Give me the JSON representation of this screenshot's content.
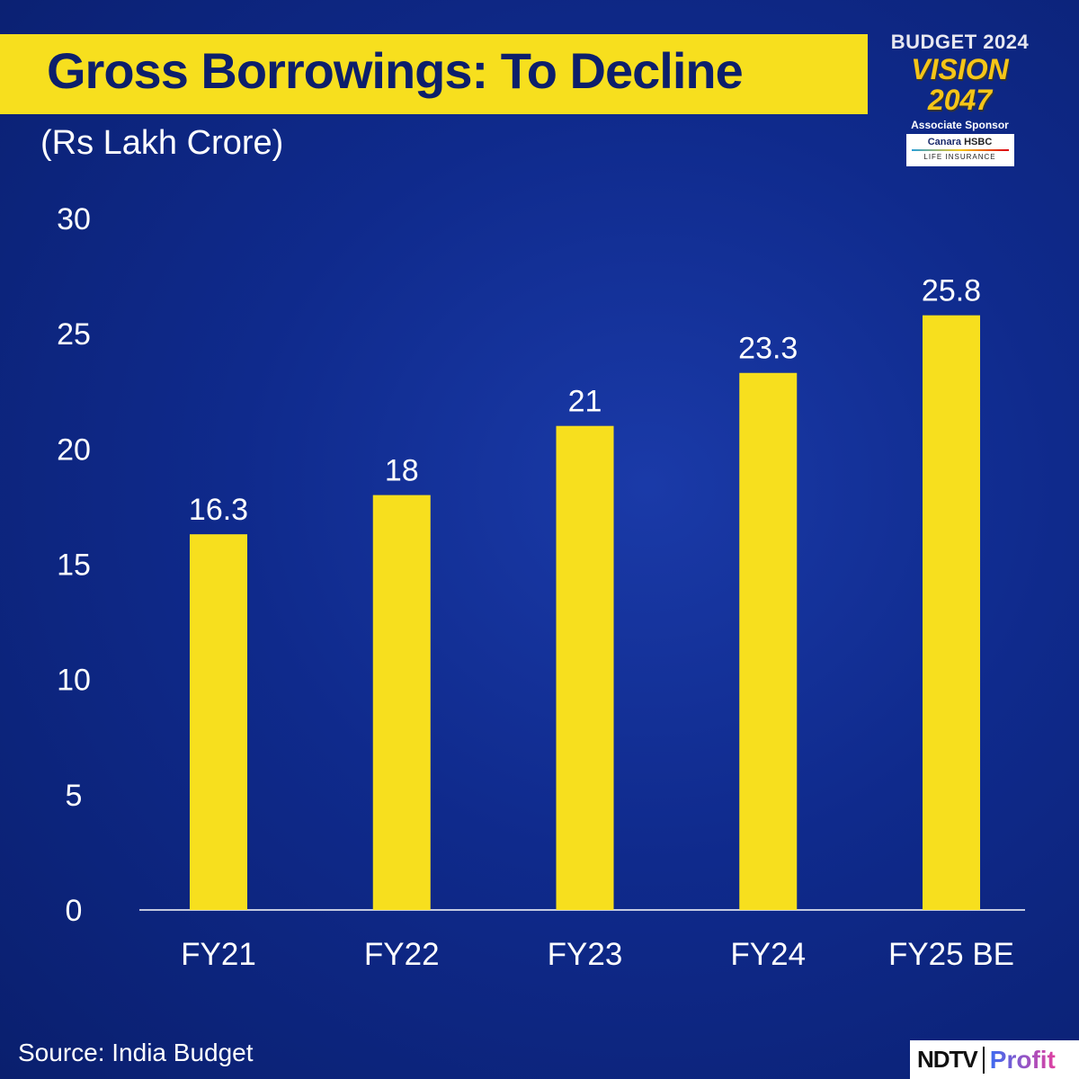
{
  "header": {
    "title": "Gross Borrowings: To Decline",
    "subtitle": "(Rs Lakh Crore)"
  },
  "sponsor": {
    "line1": "BUDGET 2024",
    "line2": "VISION 2047",
    "label": "Associate Sponsor",
    "brand1": "Canara",
    "brand2": "HSBC",
    "brand3": "LIFE INSURANCE"
  },
  "footer": {
    "source": "Source: India Budget",
    "logo_left": "NDTV",
    "logo_right": "Profit"
  },
  "colors": {
    "bar": "#f7df1e",
    "background": "#0f2a8c",
    "title_bar": "#f7df1e",
    "title_text": "#0d1f6b"
  },
  "chart_data": {
    "type": "bar",
    "title": "Gross Borrowings: To Decline",
    "ylabel": "(Rs Lakh Crore)",
    "xlabel": "",
    "categories": [
      "FY21",
      "FY22",
      "FY23",
      "FY24",
      "FY25 BE"
    ],
    "values": [
      16.3,
      18,
      21,
      23.3,
      25.8
    ],
    "data_labels": [
      "16.3",
      "18",
      "21",
      "23.3",
      "25.8"
    ],
    "ylim": [
      0,
      30
    ],
    "yticks": [
      "0",
      "5",
      "10",
      "15",
      "20",
      "25",
      "30"
    ],
    "grid": false
  }
}
